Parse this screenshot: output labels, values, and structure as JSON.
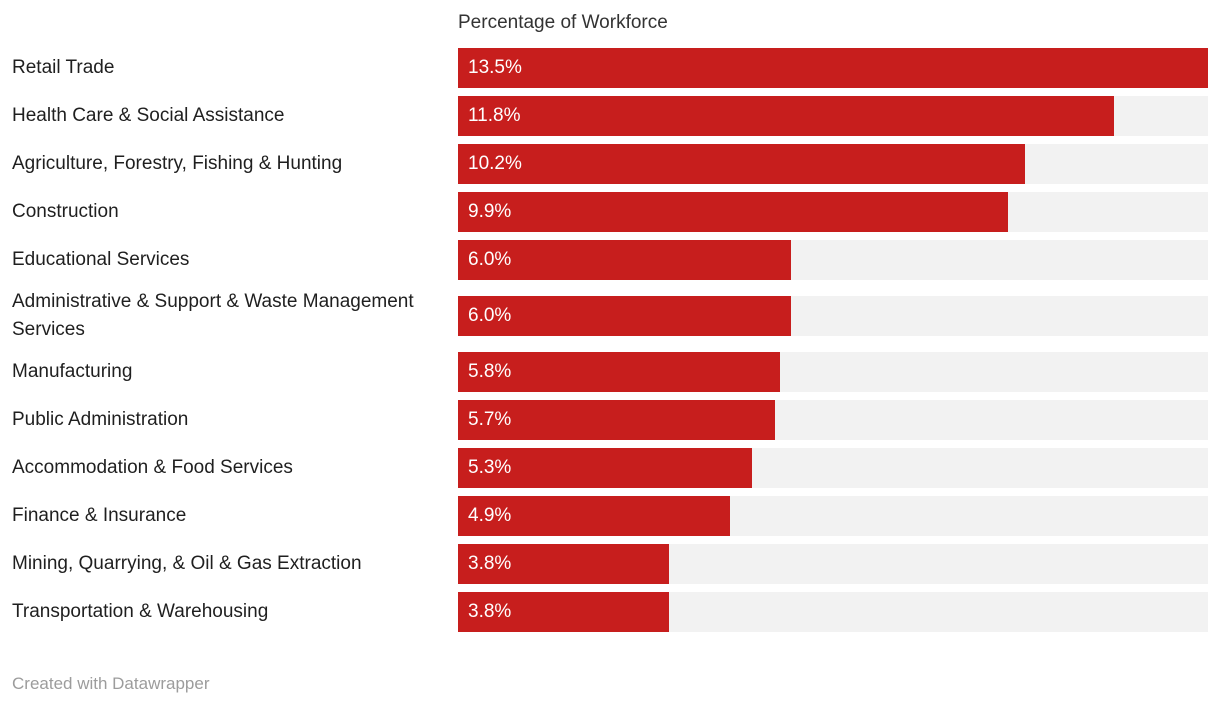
{
  "chart_data": {
    "type": "bar",
    "orientation": "horizontal",
    "title": "Percentage of Workforce",
    "xlabel": "",
    "ylabel": "",
    "xlim": [
      0,
      13.5
    ],
    "grid": false,
    "legend": false,
    "bar_color": "#c71e1d",
    "track_color": "#f2f2f2",
    "value_label_color": "#ffffff",
    "categories": [
      "Retail Trade",
      "Health Care & Social Assistance",
      "Agriculture, Forestry, Fishing & Hunting",
      "Construction",
      "Educational Services",
      "Administrative & Support & Waste Management Services",
      "Manufacturing",
      "Public Administration",
      "Accommodation & Food Services",
      "Finance & Insurance",
      "Mining, Quarrying, & Oil & Gas Extraction",
      "Transportation & Warehousing"
    ],
    "values": [
      13.5,
      11.8,
      10.2,
      9.9,
      6.0,
      6.0,
      5.8,
      5.7,
      5.3,
      4.9,
      3.8,
      3.8
    ],
    "value_labels": [
      "13.5%",
      "11.8%",
      "10.2%",
      "9.9%",
      "6.0%",
      "6.0%",
      "5.8%",
      "5.7%",
      "5.3%",
      "4.9%",
      "3.8%",
      "3.8%"
    ]
  },
  "footer": {
    "credit": "Created with Datawrapper"
  }
}
